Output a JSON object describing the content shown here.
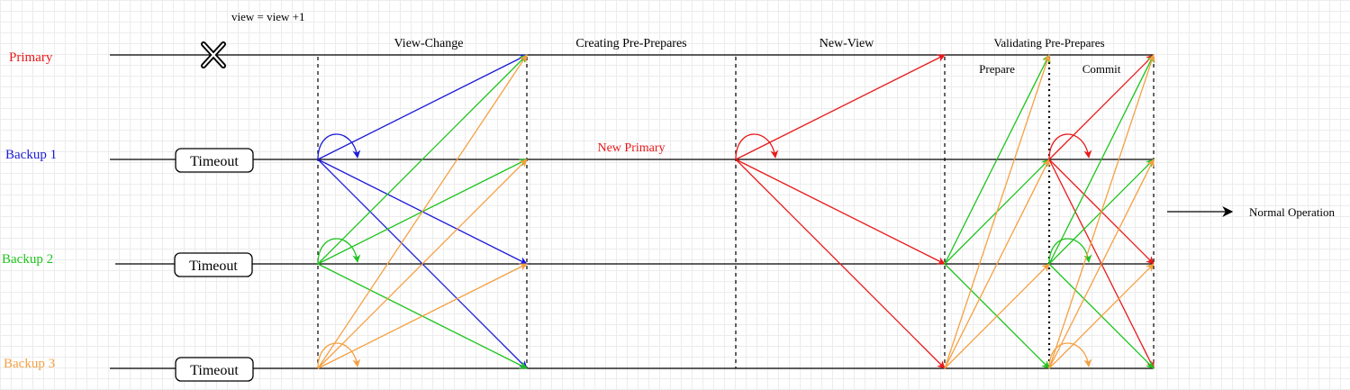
{
  "header": {
    "view_update": "view = view +1"
  },
  "nodes": {
    "primary": "Primary",
    "backup1": "Backup 1",
    "backup2": "Backup 2",
    "backup3": "Backup 3"
  },
  "node_colors": {
    "primary": "#e8191a",
    "backup1": "#1b1bd6",
    "backup2": "#1ec31e",
    "backup3": "#f4a042"
  },
  "phases": {
    "view_change": "View-Change",
    "creating_pre_prepares": "Creating Pre-Prepares",
    "new_view": "New-View",
    "validating_pre_prepares": "Validating Pre-Prepares",
    "prepare": "Prepare",
    "commit": "Commit"
  },
  "timeout_label": "Timeout",
  "new_primary_label": "New Primary",
  "normal_operation_label": "Normal Operation",
  "failure_icon": "x-mark-icon"
}
